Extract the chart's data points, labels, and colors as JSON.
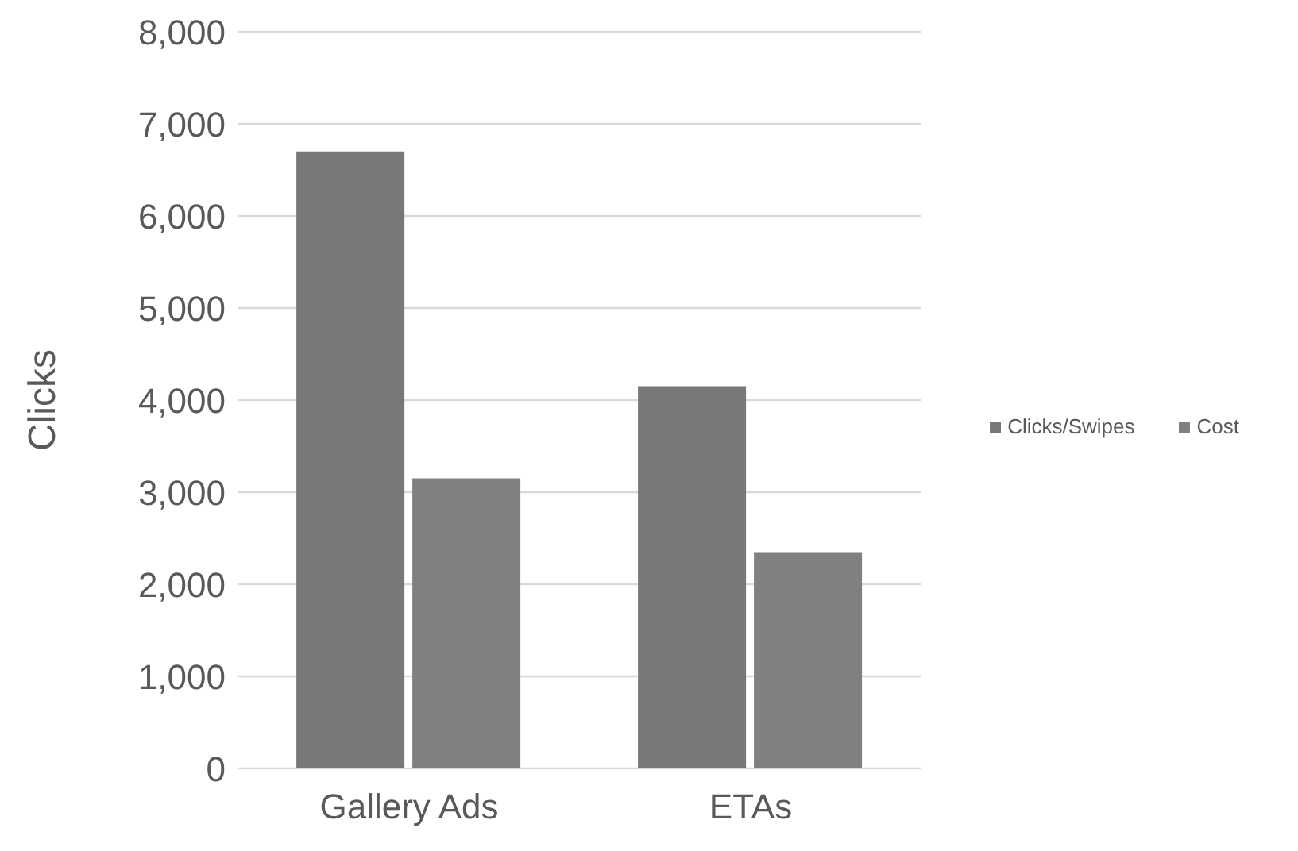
{
  "chart_data": {
    "type": "bar",
    "ylabel": "Clicks",
    "categories": [
      "Gallery Ads",
      "ETAs"
    ],
    "series": [
      {
        "name": "Clicks/Swipes",
        "color": "#787878",
        "values": [
          6700,
          4150
        ]
      },
      {
        "name": "Cost",
        "color": "#808080",
        "values": [
          3150,
          2350
        ]
      }
    ],
    "ylim": [
      0,
      8000
    ],
    "yticks": [
      0,
      {
        "value": 1000,
        "label": "1,000"
      },
      {
        "value": 2000,
        "label": "2,000"
      },
      {
        "value": 3000,
        "label": "3,000"
      },
      {
        "value": 4000,
        "label": "4,000"
      },
      {
        "value": 5000,
        "label": "5,000"
      },
      {
        "value": 6000,
        "label": "6,000"
      },
      {
        "value": 7000,
        "label": "7,000"
      },
      {
        "value": 8000,
        "label": "8,000"
      }
    ],
    "grid": "y",
    "legend": "right"
  }
}
